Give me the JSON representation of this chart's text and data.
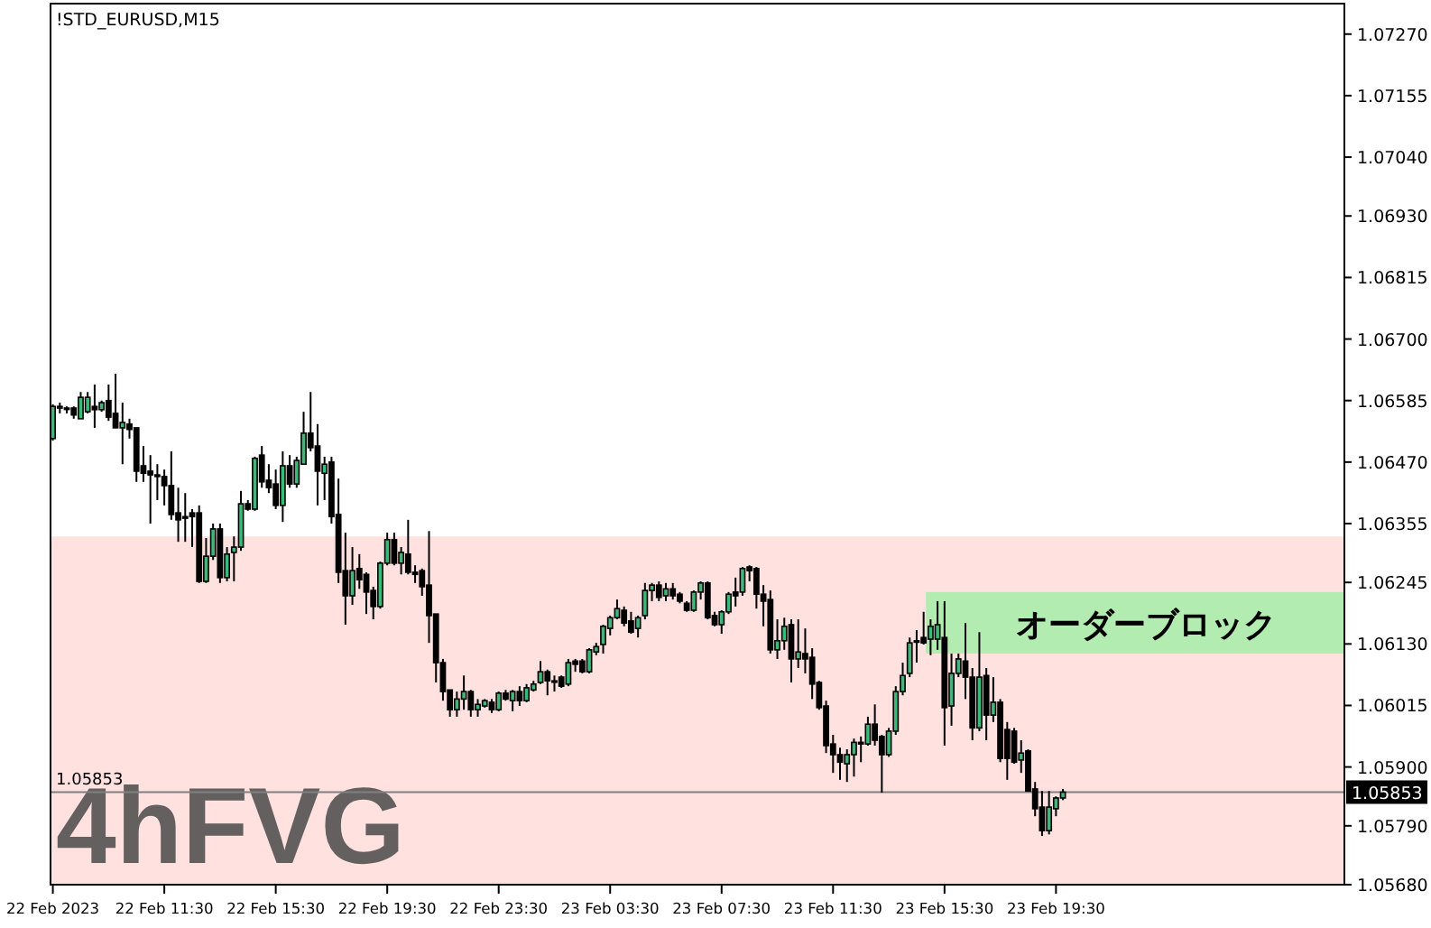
{
  "chart_data": {
    "type": "candlestick",
    "title": "!STD_EURUSD,M15",
    "x": [
      "2023-02-22T07:30",
      "2023-02-22T07:45",
      "2023-02-22T08:00",
      "2023-02-22T08:15",
      "2023-02-22T08:30",
      "2023-02-22T08:45",
      "2023-02-22T09:00",
      "2023-02-22T09:15",
      "2023-02-22T09:30",
      "2023-02-22T09:45",
      "2023-02-22T10:00",
      "2023-02-22T10:15",
      "2023-02-22T10:30",
      "2023-02-22T10:45",
      "2023-02-22T11:00",
      "2023-02-22T11:15",
      "2023-02-22T11:30",
      "2023-02-22T11:45",
      "2023-02-22T12:00",
      "2023-02-22T12:15",
      "2023-02-22T12:30",
      "2023-02-22T12:45",
      "2023-02-22T13:00",
      "2023-02-22T13:15",
      "2023-02-22T13:30",
      "2023-02-22T13:45",
      "2023-02-22T14:00",
      "2023-02-22T14:15",
      "2023-02-22T14:30",
      "2023-02-22T14:45",
      "2023-02-22T15:00",
      "2023-02-22T15:15",
      "2023-02-22T15:30",
      "2023-02-22T15:45",
      "2023-02-22T16:00",
      "2023-02-22T16:15",
      "2023-02-22T16:30",
      "2023-02-22T16:45",
      "2023-02-22T17:00",
      "2023-02-22T17:15",
      "2023-02-22T17:30",
      "2023-02-22T17:45",
      "2023-02-22T18:00",
      "2023-02-22T18:15",
      "2023-02-22T18:30",
      "2023-02-22T18:45",
      "2023-02-22T19:00",
      "2023-02-22T19:15",
      "2023-02-22T19:30",
      "2023-02-22T19:45",
      "2023-02-22T20:00",
      "2023-02-22T20:15",
      "2023-02-22T20:30",
      "2023-02-22T20:45",
      "2023-02-22T21:00",
      "2023-02-22T21:15",
      "2023-02-22T21:30",
      "2023-02-22T21:45",
      "2023-02-22T22:00",
      "2023-02-22T22:15",
      "2023-02-22T22:30",
      "2023-02-22T22:45",
      "2023-02-22T23:00",
      "2023-02-22T23:15",
      "2023-02-22T23:30",
      "2023-02-22T23:45",
      "2023-02-23T00:00",
      "2023-02-23T00:15",
      "2023-02-23T00:30",
      "2023-02-23T00:45",
      "2023-02-23T01:00",
      "2023-02-23T01:15",
      "2023-02-23T01:30",
      "2023-02-23T01:45",
      "2023-02-23T02:00",
      "2023-02-23T02:15",
      "2023-02-23T02:30",
      "2023-02-23T02:45",
      "2023-02-23T03:00",
      "2023-02-23T03:15",
      "2023-02-23T03:30",
      "2023-02-23T03:45",
      "2023-02-23T04:00",
      "2023-02-23T04:15",
      "2023-02-23T04:30",
      "2023-02-23T04:45",
      "2023-02-23T05:00",
      "2023-02-23T05:15",
      "2023-02-23T05:30",
      "2023-02-23T05:45",
      "2023-02-23T06:00",
      "2023-02-23T06:15",
      "2023-02-23T06:30",
      "2023-02-23T06:45",
      "2023-02-23T07:00",
      "2023-02-23T07:15",
      "2023-02-23T07:30",
      "2023-02-23T07:45",
      "2023-02-23T08:00",
      "2023-02-23T08:15",
      "2023-02-23T08:30",
      "2023-02-23T08:45",
      "2023-02-23T09:00",
      "2023-02-23T09:15",
      "2023-02-23T09:30",
      "2023-02-23T09:45",
      "2023-02-23T10:00",
      "2023-02-23T10:15",
      "2023-02-23T10:30",
      "2023-02-23T10:45",
      "2023-02-23T11:00",
      "2023-02-23T11:15",
      "2023-02-23T11:30",
      "2023-02-23T11:45",
      "2023-02-23T12:00",
      "2023-02-23T12:15",
      "2023-02-23T12:30",
      "2023-02-23T12:45",
      "2023-02-23T13:00",
      "2023-02-23T13:15",
      "2023-02-23T13:30",
      "2023-02-23T13:45",
      "2023-02-23T14:00",
      "2023-02-23T14:15",
      "2023-02-23T14:30",
      "2023-02-23T14:45",
      "2023-02-23T15:00",
      "2023-02-23T15:15",
      "2023-02-23T15:30",
      "2023-02-23T15:45",
      "2023-02-23T16:00",
      "2023-02-23T16:15",
      "2023-02-23T16:30",
      "2023-02-23T16:45",
      "2023-02-23T17:00",
      "2023-02-23T17:15",
      "2023-02-23T17:30",
      "2023-02-23T17:45",
      "2023-02-23T18:00",
      "2023-02-23T18:15",
      "2023-02-23T18:30",
      "2023-02-23T18:45",
      "2023-02-23T19:00",
      "2023-02-23T19:15",
      "2023-02-23T19:30",
      "2023-02-23T19:45"
    ],
    "ohlc": [
      [
        1.06514,
        1.06578,
        1.0651,
        1.06574
      ],
      [
        1.06571,
        1.06581,
        1.06561,
        1.06574
      ],
      [
        1.06571,
        1.06574,
        1.06561,
        1.06571
      ],
      [
        1.06571,
        1.06574,
        1.06551,
        1.06558
      ],
      [
        1.06551,
        1.06601,
        1.06551,
        1.06591
      ],
      [
        1.06564,
        1.06601,
        1.06561,
        1.06591
      ],
      [
        1.06574,
        1.06615,
        1.06534,
        1.06568
      ],
      [
        1.06568,
        1.06585,
        1.06564,
        1.06581
      ],
      [
        1.06585,
        1.06615,
        1.06547,
        1.06554
      ],
      [
        1.06561,
        1.06635,
        1.06534,
        1.06534
      ],
      [
        1.06534,
        1.06581,
        1.06466,
        1.06544
      ],
      [
        1.06541,
        1.06551,
        1.06514,
        1.06531
      ],
      [
        1.06534,
        1.06534,
        1.06433,
        1.06453
      ],
      [
        1.06463,
        1.065,
        1.06433,
        1.06449
      ],
      [
        1.06453,
        1.06483,
        1.06355,
        1.06446
      ],
      [
        1.06446,
        1.06466,
        1.06399,
        1.06443
      ],
      [
        1.06443,
        1.06456,
        1.06389,
        1.06426
      ],
      [
        1.06426,
        1.0649,
        1.06362,
        1.06372
      ],
      [
        1.06375,
        1.06422,
        1.06321,
        1.06362
      ],
      [
        1.06368,
        1.06412,
        1.06321,
        1.06365
      ],
      [
        1.06375,
        1.06382,
        1.06311,
        1.06368
      ],
      [
        1.06375,
        1.06389,
        1.06244,
        1.06247
      ],
      [
        1.06247,
        1.06328,
        1.06244,
        1.06294
      ],
      [
        1.06294,
        1.06355,
        1.06287,
        1.06345
      ],
      [
        1.06345,
        1.06355,
        1.06244,
        1.06254
      ],
      [
        1.06254,
        1.06311,
        1.06247,
        1.06298
      ],
      [
        1.06301,
        1.06331,
        1.06247,
        1.06311
      ],
      [
        1.06311,
        1.06416,
        1.06304,
        1.06392
      ],
      [
        1.06392,
        1.06399,
        1.06379,
        1.06382
      ],
      [
        1.06382,
        1.0648,
        1.06379,
        1.06477
      ],
      [
        1.06483,
        1.065,
        1.06422,
        1.06433
      ],
      [
        1.06436,
        1.06466,
        1.06412,
        1.06422
      ],
      [
        1.06429,
        1.06456,
        1.06382,
        1.06389
      ],
      [
        1.06389,
        1.0649,
        1.06358,
        1.06463
      ],
      [
        1.06463,
        1.06483,
        1.06422,
        1.06429
      ],
      [
        1.06429,
        1.0648,
        1.06422,
        1.06473
      ],
      [
        1.06466,
        1.06564,
        1.06466,
        1.06524
      ],
      [
        1.06524,
        1.06601,
        1.0649,
        1.06497
      ],
      [
        1.065,
        1.06541,
        1.06389,
        1.06453
      ],
      [
        1.06449,
        1.0648,
        1.06399,
        1.06466
      ],
      [
        1.0647,
        1.0648,
        1.06355,
        1.06368
      ],
      [
        1.06372,
        1.06439,
        1.06244,
        1.06264
      ],
      [
        1.06267,
        1.06338,
        1.06166,
        1.0622
      ],
      [
        1.0622,
        1.06311,
        1.06203,
        1.06267
      ],
      [
        1.06271,
        1.06298,
        1.06233,
        1.0625
      ],
      [
        1.0626,
        1.06264,
        1.06186,
        1.06227
      ],
      [
        1.0623,
        1.06237,
        1.06176,
        1.062
      ],
      [
        1.062,
        1.06284,
        1.06196,
        1.06281
      ],
      [
        1.06281,
        1.06338,
        1.06277,
        1.06325
      ],
      [
        1.06325,
        1.06338,
        1.06277,
        1.06281
      ],
      [
        1.06281,
        1.06311,
        1.0626,
        1.06301
      ],
      [
        1.06298,
        1.06362,
        1.0626,
        1.06264
      ],
      [
        1.06264,
        1.06277,
        1.06244,
        1.0626
      ],
      [
        1.06267,
        1.06271,
        1.0622,
        1.06237
      ],
      [
        1.0624,
        1.06341,
        1.06132,
        1.06183
      ],
      [
        1.06186,
        1.06186,
        1.06058,
        1.06095
      ],
      [
        1.06095,
        1.06102,
        1.06024,
        1.06041
      ],
      [
        1.06044,
        1.06044,
        1.05994,
        1.06007
      ],
      [
        1.06007,
        1.06041,
        1.05994,
        1.06027
      ],
      [
        1.06027,
        1.06071,
        1.06007,
        1.06041
      ],
      [
        1.06041,
        1.06044,
        1.05994,
        1.06007
      ],
      [
        1.06007,
        1.06027,
        1.05994,
        1.06017
      ],
      [
        1.06014,
        1.06027,
        1.06011,
        1.06024
      ],
      [
        1.06021,
        1.06027,
        1.06001,
        1.06007
      ],
      [
        1.06007,
        1.06041,
        1.06004,
        1.06038
      ],
      [
        1.06038,
        1.06044,
        1.06024,
        1.06027
      ],
      [
        1.06024,
        1.06044,
        1.06004,
        1.06041
      ],
      [
        1.06041,
        1.06051,
        1.06014,
        1.06024
      ],
      [
        1.06024,
        1.06055,
        1.06021,
        1.06048
      ],
      [
        1.06044,
        1.06061,
        1.06041,
        1.06055
      ],
      [
        1.06058,
        1.06098,
        1.06055,
        1.06078
      ],
      [
        1.06078,
        1.06082,
        1.06034,
        1.06061
      ],
      [
        1.06061,
        1.06071,
        1.06041,
        1.06061
      ],
      [
        1.06068,
        1.06071,
        1.06048,
        1.06051
      ],
      [
        1.06055,
        1.06102,
        1.06051,
        1.06095
      ],
      [
        1.06098,
        1.06102,
        1.06078,
        1.06092
      ],
      [
        1.06098,
        1.06102,
        1.06075,
        1.06078
      ],
      [
        1.06078,
        1.06122,
        1.06075,
        1.06119
      ],
      [
        1.06115,
        1.06132,
        1.06109,
        1.06125
      ],
      [
        1.06129,
        1.06166,
        1.06112,
        1.06163
      ],
      [
        1.06159,
        1.06183,
        1.06146,
        1.06179
      ],
      [
        1.06179,
        1.06213,
        1.06176,
        1.06196
      ],
      [
        1.06193,
        1.062,
        1.06163,
        1.06169
      ],
      [
        1.06173,
        1.0619,
        1.06149,
        1.06152
      ],
      [
        1.06159,
        1.06183,
        1.06142,
        1.06179
      ],
      [
        1.06183,
        1.06244,
        1.06176,
        1.0623
      ],
      [
        1.0623,
        1.06244,
        1.0621,
        1.0624
      ],
      [
        1.0624,
        1.06247,
        1.0621,
        1.06217
      ],
      [
        1.0622,
        1.06244,
        1.0621,
        1.06233
      ],
      [
        1.06233,
        1.06244,
        1.06213,
        1.0622
      ],
      [
        1.06223,
        1.06227,
        1.06206,
        1.0621
      ],
      [
        1.06206,
        1.0621,
        1.0619,
        1.06193
      ],
      [
        1.06193,
        1.0623,
        1.0619,
        1.06227
      ],
      [
        1.06227,
        1.06247,
        1.06213,
        1.06244
      ],
      [
        1.06244,
        1.06247,
        1.06176,
        1.06179
      ],
      [
        1.06183,
        1.0619,
        1.06163,
        1.06166
      ],
      [
        1.06166,
        1.06193,
        1.06149,
        1.0619
      ],
      [
        1.0619,
        1.06227,
        1.06186,
        1.06223
      ],
      [
        1.06227,
        1.06254,
        1.062,
        1.0622
      ],
      [
        1.06227,
        1.06274,
        1.0622,
        1.06271
      ],
      [
        1.06274,
        1.06277,
        1.06247,
        1.06267
      ],
      [
        1.06271,
        1.06274,
        1.06196,
        1.06223
      ],
      [
        1.06223,
        1.0624,
        1.06163,
        1.0621
      ],
      [
        1.06213,
        1.0623,
        1.06112,
        1.06119
      ],
      [
        1.06119,
        1.06176,
        1.06102,
        1.06136
      ],
      [
        1.06136,
        1.06179,
        1.06119,
        1.06163
      ],
      [
        1.06166,
        1.06176,
        1.06058,
        1.06102
      ],
      [
        1.06102,
        1.06176,
        1.06085,
        1.06115
      ],
      [
        1.06112,
        1.06159,
        1.06075,
        1.06102
      ],
      [
        1.06105,
        1.06122,
        1.06027,
        1.06055
      ],
      [
        1.06058,
        1.06061,
        1.06007,
        1.06011
      ],
      [
        1.06014,
        1.06024,
        1.05926,
        1.0594
      ],
      [
        1.05943,
        1.0596,
        1.05889,
        1.05923
      ],
      [
        1.05923,
        1.05936,
        1.05876,
        1.05909
      ],
      [
        1.05906,
        1.05933,
        1.05872,
        1.05923
      ],
      [
        1.05923,
        1.05953,
        1.05882,
        1.05946
      ],
      [
        1.05946,
        1.05957,
        1.05909,
        1.05943
      ],
      [
        1.05943,
        1.05994,
        1.0594,
        1.0598
      ],
      [
        1.0598,
        1.06017,
        1.0594,
        1.0595
      ],
      [
        1.05957,
        1.0596,
        1.05852,
        1.05923
      ],
      [
        1.05923,
        1.05973,
        1.05919,
        1.05967
      ],
      [
        1.05967,
        1.06051,
        1.0596,
        1.06041
      ],
      [
        1.06041,
        1.06095,
        1.06034,
        1.06071
      ],
      [
        1.06075,
        1.06142,
        1.06068,
        1.06132
      ],
      [
        1.06136,
        1.06156,
        1.06095,
        1.06136
      ],
      [
        1.06142,
        1.0619,
        1.06129,
        1.06132
      ],
      [
        1.06139,
        1.06176,
        1.06109,
        1.06163
      ],
      [
        1.06139,
        1.0621,
        1.06119,
        1.06166
      ],
      [
        1.06142,
        1.0621,
        1.0594,
        1.06011
      ],
      [
        1.06014,
        1.06112,
        1.05977,
        1.06075
      ],
      [
        1.06075,
        1.06112,
        1.06068,
        1.06102
      ],
      [
        1.06098,
        1.06169,
        1.06027,
        1.06068
      ],
      [
        1.06068,
        1.06085,
        1.0595,
        1.05973
      ],
      [
        1.05973,
        1.06152,
        1.05967,
        1.06068
      ],
      [
        1.06071,
        1.06085,
        1.0595,
        1.05997
      ],
      [
        1.05997,
        1.06068,
        1.05984,
        1.06021
      ],
      [
        1.06021,
        1.06027,
        1.05909,
        1.05916
      ],
      [
        1.0597,
        1.05984,
        1.05876,
        1.05916
      ],
      [
        1.05967,
        1.05973,
        1.05906,
        1.05909
      ],
      [
        1.05913,
        1.0595,
        1.05889,
        1.05926
      ],
      [
        1.0593,
        1.05933,
        1.05855,
        1.05855
      ],
      [
        1.05859,
        1.05872,
        1.05808,
        1.05822
      ],
      [
        1.05825,
        1.05855,
        1.05771,
        1.05781
      ],
      [
        1.05781,
        1.05855,
        1.05774,
        1.05825
      ],
      [
        1.05822,
        1.05845,
        1.05808,
        1.05842
      ],
      [
        1.05842,
        1.05859,
        1.05838,
        1.05853
      ]
    ],
    "xlim": [
      "2023-02-22T07:25",
      "2023-02-24T05:51"
    ],
    "xticks": [
      {
        "value": "2023-02-22T07:30",
        "label": "22 Feb 2023"
      },
      {
        "value": "2023-02-22T11:30",
        "label": "22 Feb 11:30"
      },
      {
        "value": "2023-02-22T15:30",
        "label": "22 Feb 15:30"
      },
      {
        "value": "2023-02-22T19:30",
        "label": "22 Feb 19:30"
      },
      {
        "value": "2023-02-22T23:30",
        "label": "22 Feb 23:30"
      },
      {
        "value": "2023-02-23T03:30",
        "label": "23 Feb 03:30"
      },
      {
        "value": "2023-02-23T07:30",
        "label": "23 Feb 07:30"
      },
      {
        "value": "2023-02-23T11:30",
        "label": "23 Feb 11:30"
      },
      {
        "value": "2023-02-23T15:30",
        "label": "23 Feb 15:30"
      },
      {
        "value": "2023-02-23T19:30",
        "label": "23 Feb 19:30"
      }
    ],
    "ylim": [
      1.0568,
      1.07327
    ],
    "yticks": [
      {
        "value": 1.0568,
        "label": "1.05680"
      },
      {
        "value": 1.0579,
        "label": "1.05790"
      },
      {
        "value": 1.059,
        "label": "1.05900"
      },
      {
        "value": 1.06015,
        "label": "1.06015"
      },
      {
        "value": 1.0613,
        "label": "1.06130"
      },
      {
        "value": 1.06245,
        "label": "1.06245"
      },
      {
        "value": 1.06355,
        "label": "1.06355"
      },
      {
        "value": 1.0647,
        "label": "1.06470"
      },
      {
        "value": 1.06585,
        "label": "1.06585"
      },
      {
        "value": 1.067,
        "label": "1.06700"
      },
      {
        "value": 1.06815,
        "label": "1.06815"
      },
      {
        "value": 1.0693,
        "label": "1.06930"
      },
      {
        "value": 1.0704,
        "label": "1.07040"
      },
      {
        "value": 1.07155,
        "label": "1.07155"
      },
      {
        "value": 1.0727,
        "label": "1.07270"
      }
    ],
    "ref_lines": [
      {
        "axis": "y",
        "value": 1.05853,
        "label": "1.05853",
        "color": "#808080"
      }
    ],
    "bands": [
      {
        "axis": "y",
        "from": 1.0568,
        "to": 1.06331,
        "label": "4hFVG",
        "color": "#ffe1df"
      },
      {
        "axis": "y",
        "from": 1.06112,
        "to": 1.06227,
        "color": "#b2ecb0"
      }
    ],
    "annotations": [
      {
        "text": "オーダーブロック",
        "x": "2023-02-23T14:50",
        "y": 1.06227
      }
    ]
  }
}
